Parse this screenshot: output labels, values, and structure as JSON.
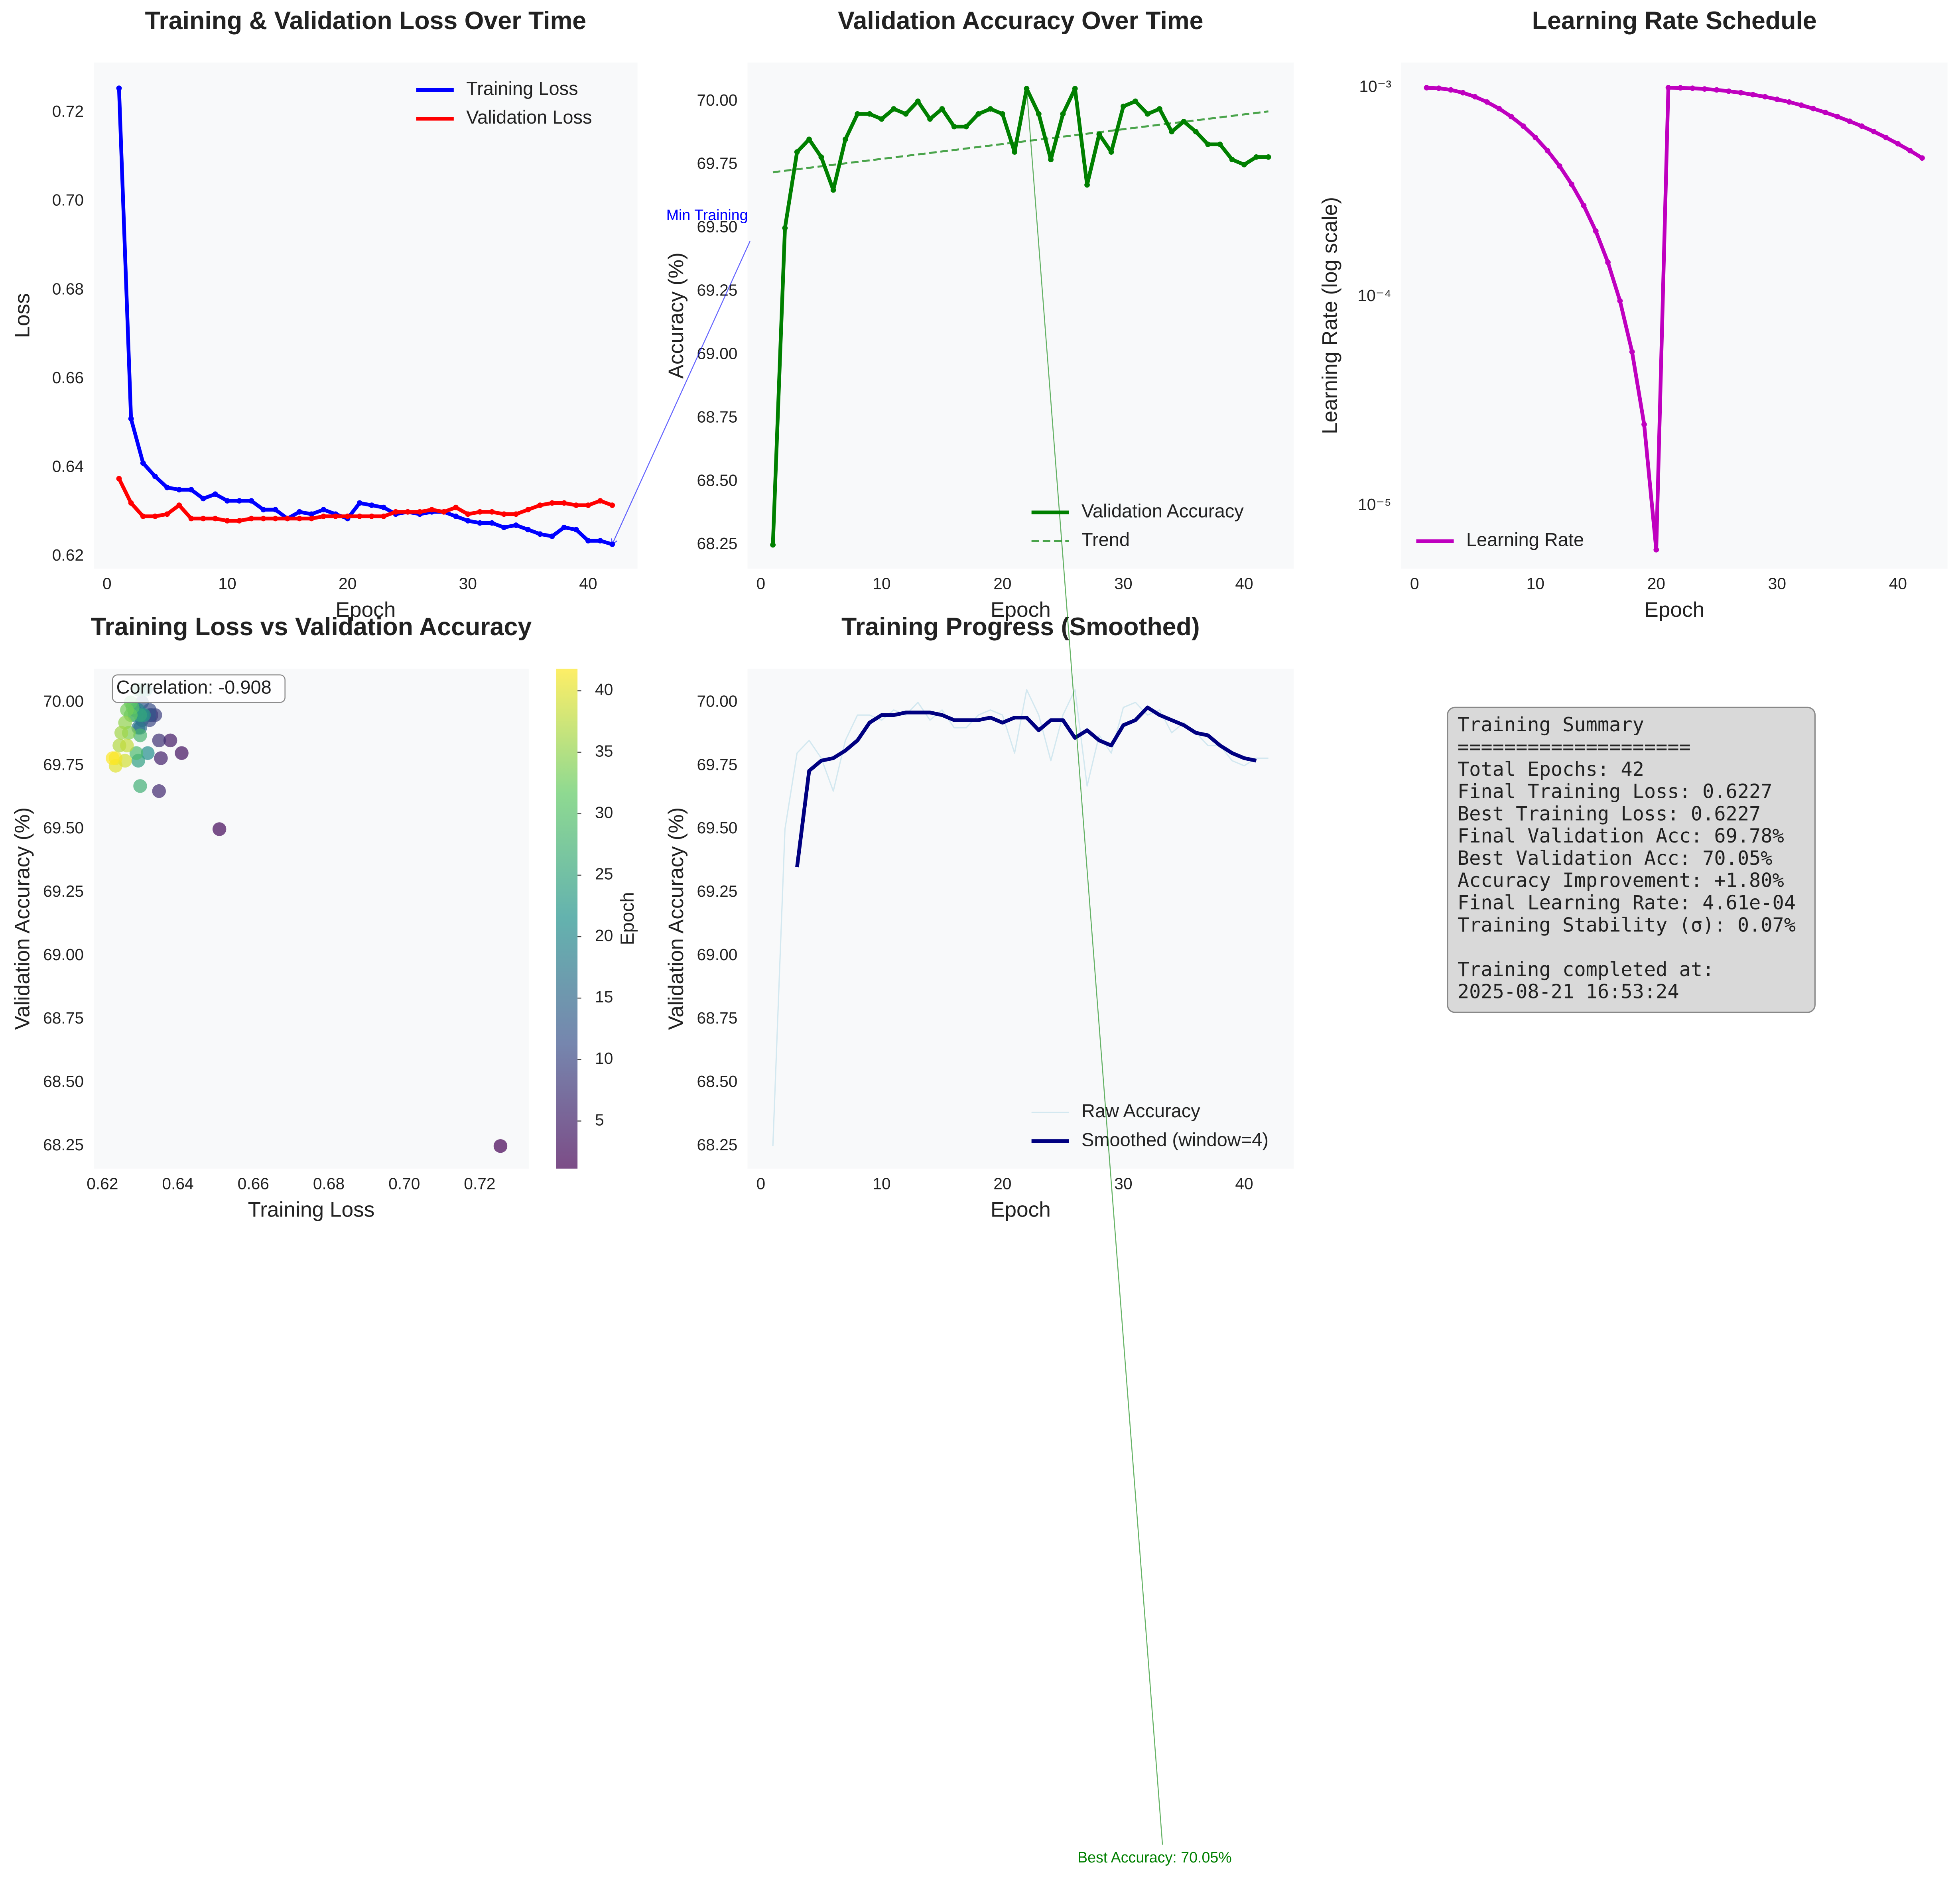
{
  "chart_data": [
    {
      "type": "line",
      "title": "Training & Validation Loss Over Time",
      "xlabel": "Epoch",
      "ylabel": "Loss",
      "x": [
        1,
        2,
        3,
        4,
        5,
        6,
        7,
        8,
        9,
        10,
        11,
        12,
        13,
        14,
        15,
        16,
        17,
        18,
        19,
        20,
        21,
        22,
        23,
        24,
        25,
        26,
        27,
        28,
        29,
        30,
        31,
        32,
        33,
        34,
        35,
        36,
        37,
        38,
        39,
        40,
        41,
        42
      ],
      "series": [
        {
          "name": "Training Loss",
          "color": "#0000ff",
          "linewidth": 3,
          "marker": true,
          "values": [
            0.7255,
            0.651,
            0.641,
            0.638,
            0.6355,
            0.635,
            0.635,
            0.633,
            0.634,
            0.6325,
            0.6325,
            0.6325,
            0.6305,
            0.6305,
            0.6285,
            0.63,
            0.6295,
            0.6305,
            0.6295,
            0.6285,
            0.632,
            0.6315,
            0.631,
            0.6295,
            0.63,
            0.6295,
            0.63,
            0.63,
            0.629,
            0.628,
            0.6275,
            0.6275,
            0.6265,
            0.627,
            0.626,
            0.625,
            0.6245,
            0.6265,
            0.626,
            0.6235,
            0.6235,
            0.6227
          ]
        },
        {
          "name": "Validation Loss",
          "color": "#ff0000",
          "linewidth": 3,
          "marker": true,
          "values": [
            0.6375,
            0.632,
            0.629,
            0.629,
            0.6295,
            0.6315,
            0.6285,
            0.6285,
            0.6285,
            0.628,
            0.628,
            0.6285,
            0.6285,
            0.6285,
            0.6285,
            0.6285,
            0.6285,
            0.629,
            0.629,
            0.629,
            0.629,
            0.629,
            0.629,
            0.63,
            0.63,
            0.63,
            0.6305,
            0.63,
            0.631,
            0.6295,
            0.63,
            0.63,
            0.6295,
            0.6295,
            0.6305,
            0.6315,
            0.632,
            0.632,
            0.6315,
            0.6315,
            0.6325,
            0.6315
          ]
        }
      ],
      "xlim": [
        -1.1,
        44.1
      ],
      "ylim": [
        0.6172,
        0.7313
      ],
      "xticks": [
        0,
        10,
        20,
        30,
        40
      ],
      "yticks": [
        0.62,
        0.64,
        0.66,
        0.68,
        {
          "value": 0.7,
          "label": "0.70"
        },
        0.72
      ],
      "legend": "upper right",
      "annotation": {
        "text": "Min Training",
        "color": "#0000ff",
        "x": 42,
        "y": 0.6227
      }
    },
    {
      "type": "line",
      "title": "Validation Accuracy Over Time",
      "xlabel": "Epoch",
      "ylabel": "Accuracy (%)",
      "x": [
        1,
        2,
        3,
        4,
        5,
        6,
        7,
        8,
        9,
        10,
        11,
        12,
        13,
        14,
        15,
        16,
        17,
        18,
        19,
        20,
        21,
        22,
        23,
        24,
        25,
        26,
        27,
        28,
        29,
        30,
        31,
        32,
        33,
        34,
        35,
        36,
        37,
        38,
        39,
        40,
        41,
        42
      ],
      "series": [
        {
          "name": "Validation Accuracy",
          "color": "#008000",
          "linewidth": 3,
          "marker": true,
          "values": [
            68.25,
            69.5,
            69.8,
            69.85,
            69.78,
            69.65,
            69.85,
            69.95,
            69.95,
            69.93,
            69.97,
            69.95,
            70.0,
            69.93,
            69.97,
            69.9,
            69.9,
            69.95,
            69.97,
            69.95,
            69.8,
            70.05,
            69.95,
            69.77,
            69.95,
            70.05,
            69.67,
            69.87,
            69.8,
            69.98,
            70.0,
            69.95,
            69.97,
            69.88,
            69.92,
            69.88,
            69.83,
            69.83,
            69.77,
            69.75,
            69.78,
            69.78
          ]
        },
        {
          "name": "Trend",
          "color": "#008000",
          "linewidth": 1.6,
          "dashed": true,
          "alpha": 0.7,
          "x": [
            1,
            42
          ],
          "values": [
            69.72,
            69.96
          ]
        }
      ],
      "xlim": [
        -1.1,
        44.1
      ],
      "ylim": [
        68.156,
        70.153
      ],
      "xticks": [
        0,
        10,
        20,
        30,
        40
      ],
      "yticks": [
        68.25,
        {
          "value": 68.5,
          "label": "68.50"
        },
        68.75,
        {
          "value": 69.0,
          "label": "69.00"
        },
        69.25,
        {
          "value": 69.5,
          "label": "69.50"
        },
        69.75,
        {
          "value": 70.0,
          "label": "70.00"
        }
      ],
      "legend": "lower right",
      "annotation": {
        "text": "Best Accuracy: 70.05%",
        "color": "#008000",
        "x": 22,
        "y": 70.05
      }
    },
    {
      "type": "line",
      "title": "Learning Rate Schedule",
      "xlabel": "Epoch",
      "ylabel": "Learning Rate (log scale)",
      "log_y": true,
      "x": [
        1,
        2,
        3,
        4,
        5,
        6,
        7,
        8,
        9,
        10,
        11,
        12,
        13,
        14,
        15,
        16,
        17,
        18,
        19,
        20,
        21,
        22,
        23,
        24,
        25,
        26,
        27,
        28,
        29,
        30,
        31,
        32,
        33,
        34,
        35,
        36,
        37,
        38,
        39,
        40,
        41,
        42
      ],
      "series": [
        {
          "name": "Learning Rate",
          "color": "#bf00bf",
          "linewidth": 3,
          "marker": true,
          "values": [
            0.001,
            0.000994,
            0.000976,
            0.000946,
            0.000905,
            0.000854,
            0.000794,
            0.000727,
            0.000655,
            0.000578,
            0.0005,
            0.000422,
            0.000345,
            0.000273,
            0.000206,
            0.000146,
            9.55e-05,
            5.45e-05,
            2.45e-05,
            6.16e-06,
            0.001,
            0.000998,
            0.000994,
            0.000986,
            0.000976,
            0.000962,
            0.000946,
            0.000926,
            0.000905,
            0.00088,
            0.000854,
            0.000825,
            0.000794,
            0.000761,
            0.000727,
            0.000691,
            0.000655,
            0.000617,
            0.000578,
            0.000539,
            0.0005,
            0.000461
          ]
        }
      ],
      "xlim": [
        -1.1,
        44.1
      ],
      "ylim": [
        5e-06,
        0.00132
      ],
      "xticks": [
        0,
        10,
        20,
        30,
        40
      ],
      "yticks": [
        {
          "value": 1e-05,
          "label": "10⁻⁵"
        },
        {
          "value": 0.0001,
          "label": "10⁻⁴"
        },
        {
          "value": 0.001,
          "label": "10⁻³"
        }
      ],
      "legend": "lower left"
    },
    {
      "type": "scatter",
      "title": "Training Loss vs Validation Accuracy",
      "xlabel": "Training Loss",
      "ylabel": "Validation Accuracy (%)",
      "x": [
        0.7255,
        0.651,
        0.641,
        0.638,
        0.6355,
        0.635,
        0.635,
        0.633,
        0.634,
        0.6325,
        0.6325,
        0.6325,
        0.6305,
        0.6305,
        0.6285,
        0.63,
        0.6295,
        0.6305,
        0.6295,
        0.6285,
        0.632,
        0.6315,
        0.631,
        0.6295,
        0.63,
        0.6295,
        0.63,
        0.63,
        0.629,
        0.628,
        0.6275,
        0.6275,
        0.6265,
        0.627,
        0.626,
        0.625,
        0.6245,
        0.6265,
        0.626,
        0.6235,
        0.6235,
        0.6227
      ],
      "y": [
        68.25,
        69.5,
        69.8,
        69.85,
        69.78,
        69.65,
        69.85,
        69.95,
        69.95,
        69.93,
        69.97,
        69.95,
        70.0,
        69.93,
        69.97,
        69.9,
        69.9,
        69.95,
        69.97,
        69.95,
        69.8,
        70.05,
        69.95,
        69.77,
        69.95,
        70.05,
        69.67,
        69.87,
        69.8,
        69.98,
        70.0,
        69.95,
        69.97,
        69.88,
        69.92,
        69.88,
        69.83,
        69.83,
        69.77,
        69.75,
        69.78,
        69.78
      ],
      "c": [
        1,
        2,
        3,
        4,
        5,
        6,
        7,
        8,
        9,
        10,
        11,
        12,
        13,
        14,
        15,
        16,
        17,
        18,
        19,
        20,
        21,
        22,
        23,
        24,
        25,
        26,
        27,
        28,
        29,
        30,
        31,
        32,
        33,
        34,
        35,
        36,
        37,
        38,
        39,
        40,
        41,
        42
      ],
      "colormap": "viridis",
      "alpha": 0.7,
      "colorbar": {
        "label": "Epoch",
        "lim": [
          1.13,
          41.8
        ],
        "ticks": [
          5,
          10,
          15,
          20,
          25,
          30,
          35,
          40
        ]
      },
      "xlim": [
        0.6177,
        0.733
      ],
      "ylim": [
        68.161,
        70.133
      ],
      "xticks": [
        0.62,
        0.64,
        0.66,
        0.68,
        {
          "value": 0.7,
          "label": "0.70"
        },
        0.72
      ],
      "yticks": [
        68.25,
        {
          "value": 68.5,
          "label": "68.50"
        },
        68.75,
        {
          "value": 69.0,
          "label": "69.00"
        },
        69.25,
        {
          "value": 69.5,
          "label": "69.50"
        },
        69.75,
        {
          "value": 70.0,
          "label": "70.00"
        }
      ],
      "annotation": {
        "text": "Correlation: -0.908"
      }
    },
    {
      "type": "line",
      "title": "Training Progress (Smoothed)",
      "xlabel": "Epoch",
      "ylabel": "Validation Accuracy (%)",
      "x": [
        1,
        2,
        3,
        4,
        5,
        6,
        7,
        8,
        9,
        10,
        11,
        12,
        13,
        14,
        15,
        16,
        17,
        18,
        19,
        20,
        21,
        22,
        23,
        24,
        25,
        26,
        27,
        28,
        29,
        30,
        31,
        32,
        33,
        34,
        35,
        36,
        37,
        38,
        39,
        40,
        41,
        42
      ],
      "series": [
        {
          "name": "Raw Accuracy",
          "color": "#add8e6",
          "linewidth": 1,
          "alpha": 0.5,
          "values": [
            68.25,
            69.5,
            69.8,
            69.85,
            69.78,
            69.65,
            69.85,
            69.95,
            69.95,
            69.93,
            69.97,
            69.95,
            70.0,
            69.93,
            69.97,
            69.9,
            69.9,
            69.95,
            69.97,
            69.95,
            69.8,
            70.05,
            69.95,
            69.77,
            69.95,
            70.05,
            69.67,
            69.87,
            69.8,
            69.98,
            70.0,
            69.95,
            69.97,
            69.88,
            69.92,
            69.88,
            69.83,
            69.83,
            69.77,
            69.75,
            69.78,
            69.78
          ]
        },
        {
          "name": "Smoothed (window=4)",
          "color": "#000080",
          "linewidth": 3,
          "values": [
            null,
            null,
            69.35,
            69.73,
            69.77,
            69.78,
            69.81,
            69.85,
            69.92,
            69.95,
            69.95,
            69.96,
            69.96,
            69.96,
            69.95,
            69.93,
            69.93,
            69.93,
            69.94,
            69.92,
            69.94,
            69.94,
            69.89,
            69.93,
            69.93,
            69.86,
            69.89,
            69.85,
            69.83,
            69.91,
            69.93,
            69.98,
            69.95,
            69.93,
            69.91,
            69.88,
            69.87,
            69.83,
            69.8,
            69.78,
            69.77,
            null
          ]
        }
      ],
      "xlim": [
        -1.1,
        44.1
      ],
      "ylim": [
        68.161,
        70.133
      ],
      "xticks": [
        0,
        10,
        20,
        30,
        40
      ],
      "yticks": [
        68.25,
        {
          "value": 68.5,
          "label": "68.50"
        },
        68.75,
        {
          "value": 69.0,
          "label": "69.00"
        },
        69.25,
        {
          "value": 69.5,
          "label": "69.50"
        },
        69.75,
        {
          "value": 70.0,
          "label": "70.00"
        }
      ],
      "legend": "lower right"
    }
  ],
  "summary": {
    "lines": [
      "Training Summary",
      "====================",
      "Total Epochs: 42",
      "Final Training Loss: 0.6227",
      "Best Training Loss: 0.6227",
      "Final Validation Acc: 69.78%",
      "Best Validation Acc: 70.05%",
      "Accuracy Improvement: +1.80%",
      "Final Learning Rate: 4.61e-04",
      "Training Stability (σ): 0.07%"
    ],
    "footer": [
      "Training completed at:",
      "2025-08-21 16:53:24"
    ]
  }
}
